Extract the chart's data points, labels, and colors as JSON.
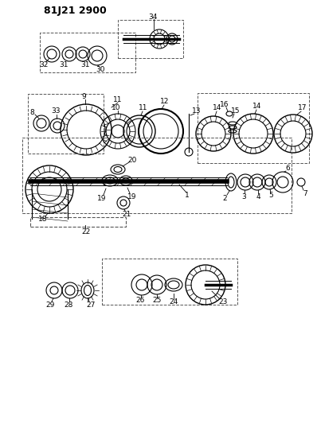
{
  "title": "81J21 2900",
  "bg_color": "#ffffff",
  "line_color": "#000000",
  "fig_width": 3.98,
  "fig_height": 5.33,
  "dpi": 100
}
